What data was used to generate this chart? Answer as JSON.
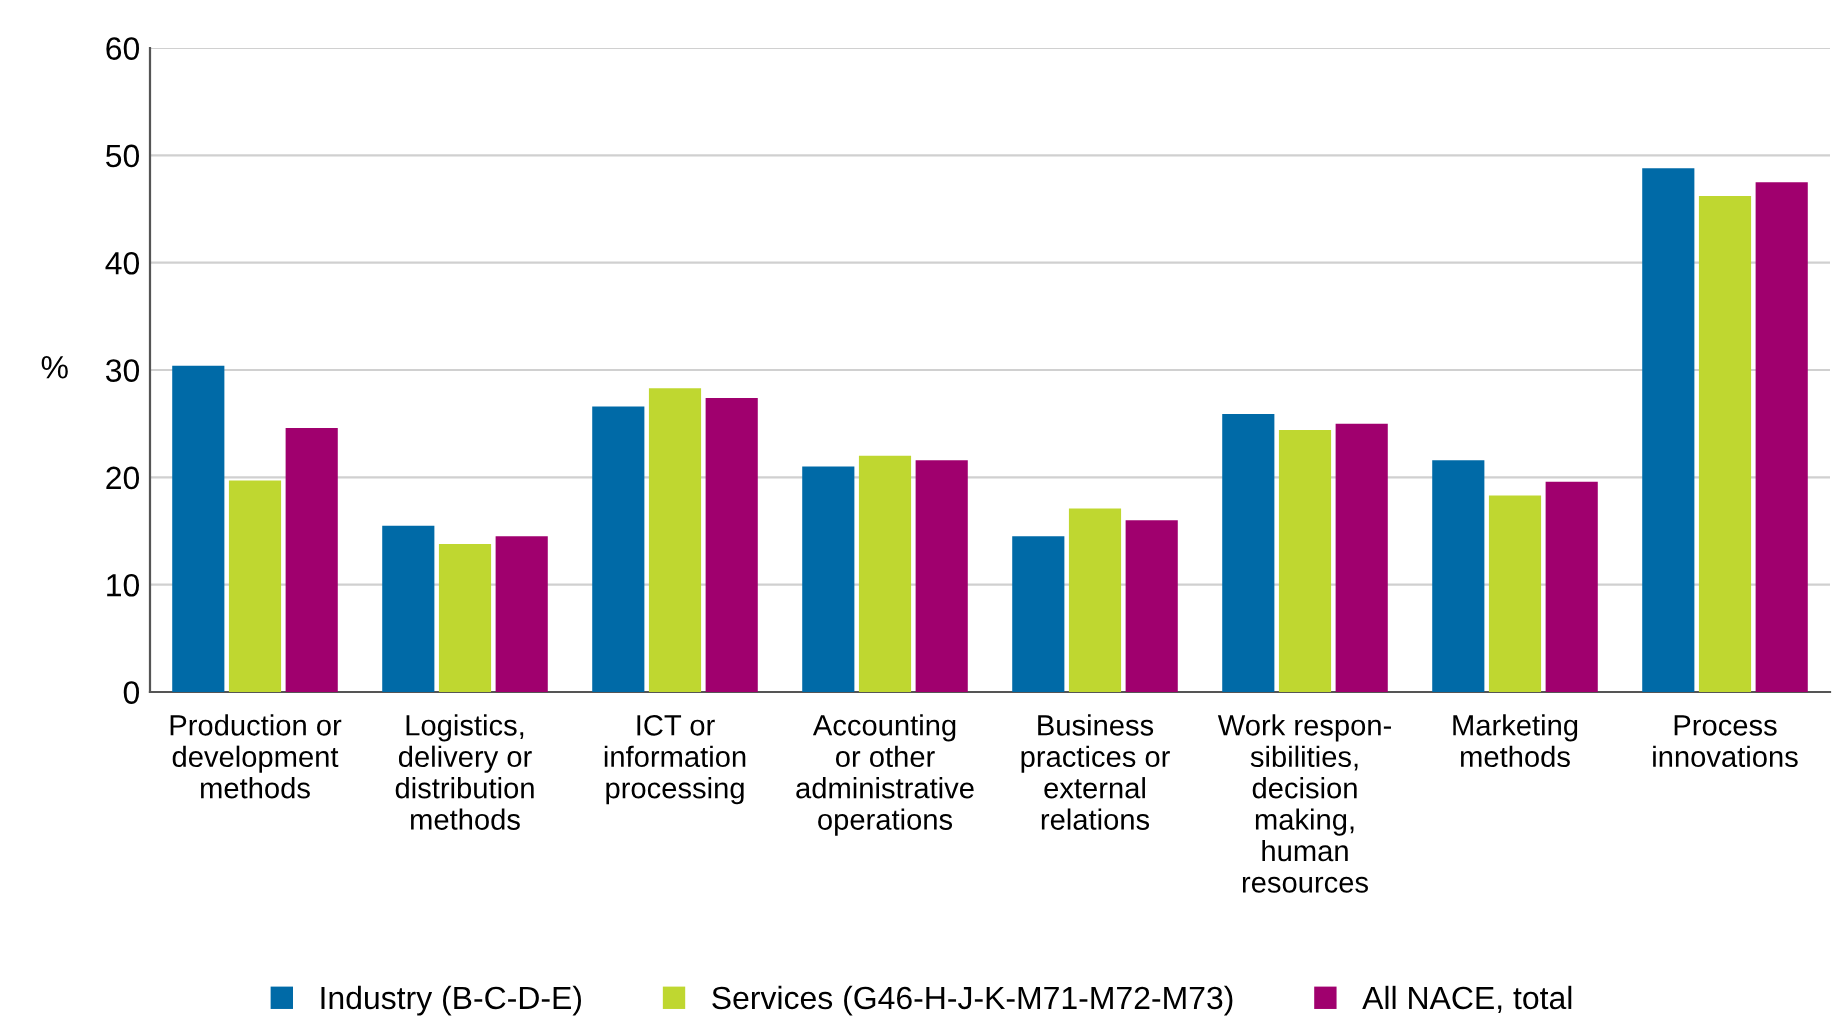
{
  "chart_data": {
    "type": "bar",
    "ylabel": "%",
    "categories": [
      "Production or\ndevelopment\nmethods",
      "Logistics,\ndelivery or\ndistribution\nmethods",
      "ICT or\ninformation\nprocessing",
      "Accounting\nor other\nadministrative\noperations",
      "Business\npractices or\nexternal\nrelations",
      "Work respon-\nsibilities,\ndecision\nmaking,\nhuman\nresources",
      "Marketing\nmethods",
      "Process\ninnovations"
    ],
    "series": [
      {
        "name": "Industry (B-C-D-E)",
        "color": "#006aa7",
        "values": [
          30.4,
          15.5,
          26.6,
          21.0,
          14.5,
          25.9,
          21.6,
          48.8
        ]
      },
      {
        "name": "Services (G46-H-J-K-M71-M72-M73)",
        "color": "#bfd730",
        "values": [
          19.7,
          13.8,
          28.3,
          22.0,
          17.1,
          24.4,
          18.3,
          46.2
        ]
      },
      {
        "name": "All NACE, total",
        "color": "#a0006e",
        "values": [
          24.6,
          14.5,
          27.4,
          21.6,
          16.0,
          25.0,
          19.6,
          47.5
        ]
      }
    ],
    "ylim": [
      0,
      60
    ],
    "yticks": [
      0,
      10,
      20,
      30,
      40,
      50,
      60
    ],
    "grid": "y",
    "legend": "bottom"
  }
}
